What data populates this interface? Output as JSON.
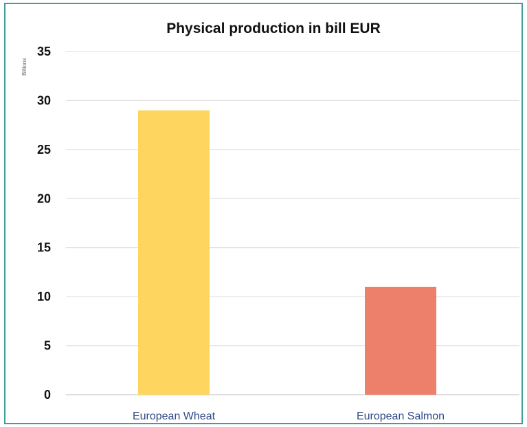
{
  "chart_data": {
    "type": "bar",
    "title": "Physical production in bill EUR",
    "unit_label": "Billions",
    "categories": [
      "European Wheat",
      "European Salmon"
    ],
    "values": [
      29,
      11
    ],
    "colors": [
      "#fdd55f",
      "#ec806a"
    ],
    "ylim": [
      0,
      35
    ],
    "yticks": [
      0,
      5,
      10,
      15,
      20,
      25,
      30,
      35
    ],
    "grid": true,
    "legend": "none",
    "frame_color": "#3f9e98"
  }
}
